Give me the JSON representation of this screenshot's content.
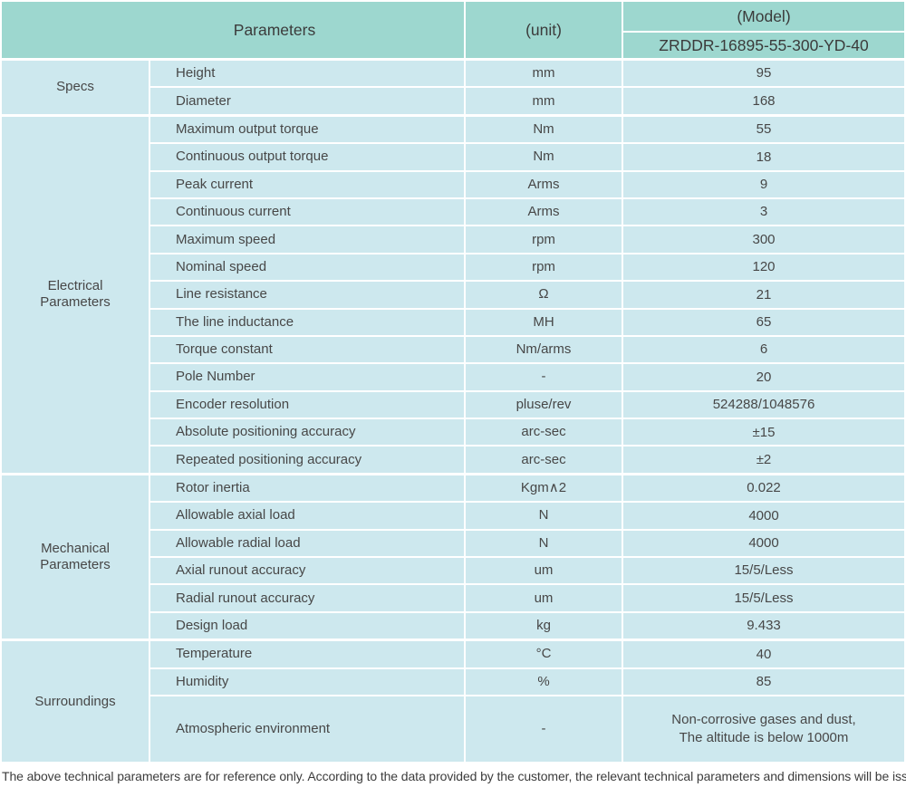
{
  "header": {
    "parameters_label": "Parameters",
    "unit_label": "(unit)",
    "model_label": "(Model)",
    "model_number": "ZRDDR-16895-55-300-YD-40"
  },
  "sections": [
    {
      "group": "Specs",
      "rows": [
        {
          "name": "Height",
          "unit": "mm",
          "value": "95"
        },
        {
          "name": "Diameter",
          "unit": "mm",
          "value": "168"
        }
      ]
    },
    {
      "group": "Electrical Parameters",
      "rows": [
        {
          "name": "Maximum output torque",
          "unit": "Nm",
          "value": "55"
        },
        {
          "name": "Continuous output torque",
          "unit": "Nm",
          "value": "18"
        },
        {
          "name": "Peak current",
          "unit": "Arms",
          "value": "9"
        },
        {
          "name": "Continuous current",
          "unit": "Arms",
          "value": "3"
        },
        {
          "name": "Maximum speed",
          "unit": "rpm",
          "value": "300"
        },
        {
          "name": "Nominal speed",
          "unit": "rpm",
          "value": "120"
        },
        {
          "name": "Line resistance",
          "unit": "Ω",
          "value": "21"
        },
        {
          "name": "The line inductance",
          "unit": "MH",
          "value": "65"
        },
        {
          "name": "Torque constant",
          "unit": "Nm/arms",
          "value": "6"
        },
        {
          "name": "Pole Number",
          "unit": "-",
          "value": "20"
        },
        {
          "name": "Encoder resolution",
          "unit": "pluse/rev",
          "value": "524288/1048576"
        },
        {
          "name": "Absolute positioning accuracy",
          "unit": "arc-sec",
          "value": "±15"
        },
        {
          "name": "Repeated positioning accuracy",
          "unit": "arc-sec",
          "value": "±2"
        }
      ]
    },
    {
      "group": "Mechanical Parameters",
      "rows": [
        {
          "name": "Rotor inertia",
          "unit": "Kgm∧2",
          "value": "0.022"
        },
        {
          "name": "Allowable axial load",
          "unit": "N",
          "value": "4000"
        },
        {
          "name": "Allowable radial load",
          "unit": "N",
          "value": "4000"
        },
        {
          "name": "Axial runout accuracy",
          "unit": "um",
          "value": "15/5/Less"
        },
        {
          "name": "Radial runout accuracy",
          "unit": "um",
          "value": "15/5/Less"
        },
        {
          "name": "Design load",
          "unit": "kg",
          "value": "9.433"
        }
      ]
    },
    {
      "group": "Surroundings",
      "rows": [
        {
          "name": "Temperature",
          "unit": "°C",
          "value": "40"
        },
        {
          "name": "Humidity",
          "unit": "%",
          "value": "85"
        },
        {
          "name": "Atmospheric environment",
          "unit": "-",
          "value": "Non-corrosive gases and dust,\nThe altitude is below 1000m",
          "tall": true
        }
      ]
    }
  ],
  "footnote": "The above technical parameters are for reference only. According to the data provided by the customer, the relevant technical parameters and dimensions will be issued.",
  "colors": {
    "header_bg": "#9dd7cf",
    "cell_bg": "#cde8ee",
    "grid": "#ffffff",
    "text": "#474747"
  }
}
